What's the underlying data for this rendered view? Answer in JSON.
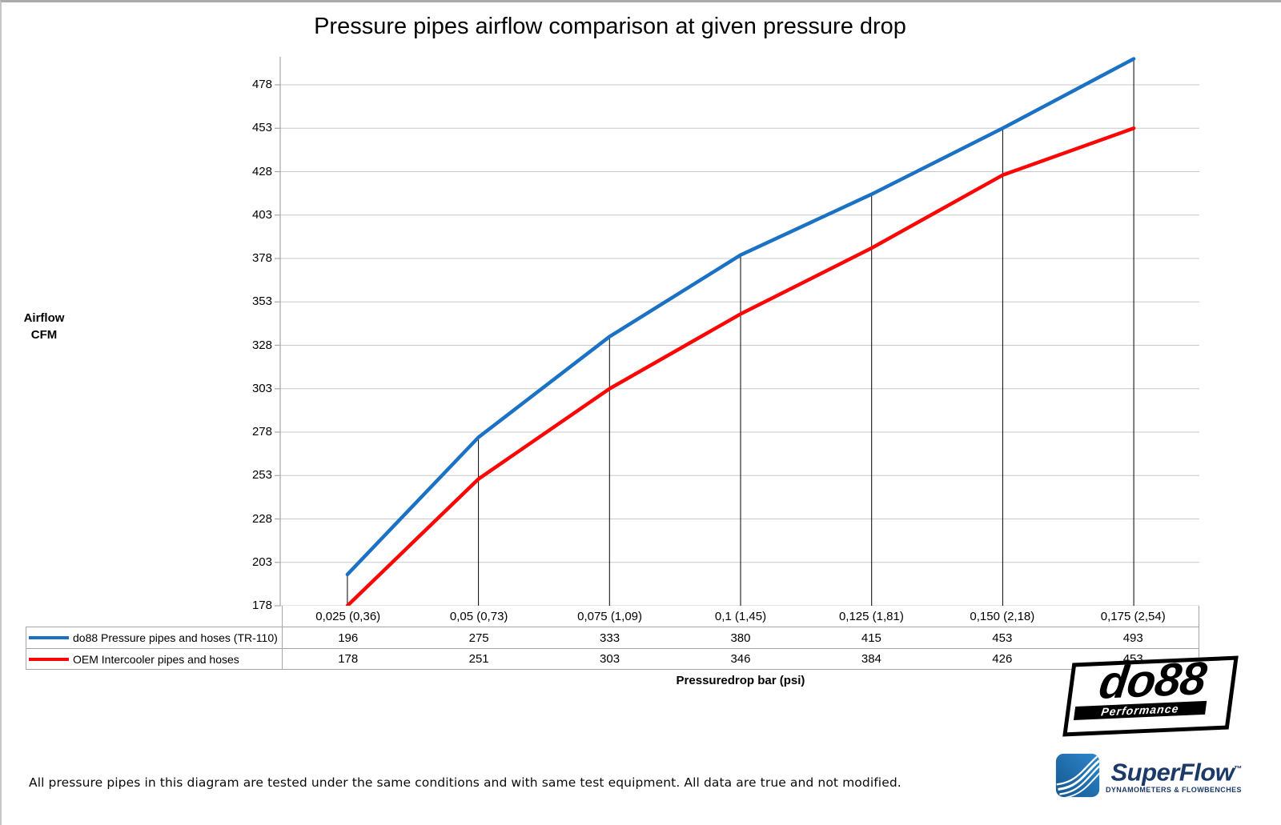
{
  "title": "Pressure pipes airflow comparison at given pressure drop",
  "y_axis": {
    "label_line1": "Airflow",
    "label_line2": "CFM"
  },
  "x_axis": {
    "label": "Pressuredrop bar (psi)"
  },
  "chart_data": {
    "type": "line",
    "title": "Pressure pipes airflow comparison at given pressure drop",
    "categories": [
      "0,025 (0,36)",
      "0,05 (0,73)",
      "0,075 (1,09)",
      "0,1 (1,45)",
      "0,125 (1,81)",
      "0,150 (2,18)",
      "0,175 (2,54)"
    ],
    "series": [
      {
        "name": "do88 Pressure pipes and hoses (TR-110)",
        "color": "#1B72C4",
        "values": [
          196,
          275,
          333,
          380,
          415,
          453,
          493
        ]
      },
      {
        "name": "OEM Intercooler pipes and hoses",
        "color": "#FB0505",
        "values": [
          178,
          251,
          303,
          346,
          384,
          426,
          453
        ]
      }
    ],
    "xlabel": "Pressuredrop bar (psi)",
    "ylabel": "Airflow CFM",
    "y_ticks": [
      178,
      203,
      228,
      253,
      278,
      303,
      328,
      353,
      378,
      403,
      428,
      453,
      478
    ],
    "ylim": [
      178,
      494
    ],
    "grid": true,
    "drop_lines": true,
    "legend_position": "table-left"
  },
  "footer": {
    "disclaimer": "All pressure pipes in this diagram are tested under the same conditions and with same test equipment. All data are true and not modified."
  },
  "logos": {
    "do88": {
      "text": "do88",
      "subtext": "Performance"
    },
    "superflow": {
      "text": "SuperFlow",
      "trademark": "™",
      "subtext": "DYNAMOMETERS & FLOWBENCHES"
    }
  },
  "colors": {
    "gridline": "#C9C9C9",
    "axis": "#A6A6A6",
    "drop_line": "#000000",
    "table_border": "#A6A6A6",
    "superflow_navy": "#1B3A67",
    "superflow_blue_light": "#2F87CB",
    "superflow_blue_dark": "#14578F"
  }
}
